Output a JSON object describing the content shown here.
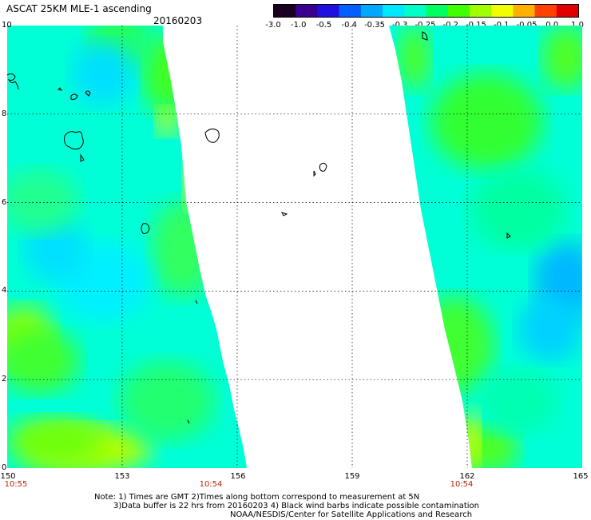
{
  "header": {
    "title": "ASCAT 25KM MLE-1 ascending",
    "date": "20160203"
  },
  "colorbar": {
    "tick_labels": [
      "-3.0",
      "-1.0",
      "-0.5",
      "-0.4",
      "-0.35",
      "-0.3",
      "-0.25",
      "-0.2",
      "-0.15",
      "-0.1",
      "-0.05",
      "0.0",
      "1.0"
    ],
    "colors": [
      "#1a0020",
      "#3a0090",
      "#2010e0",
      "#0060ff",
      "#00a8ff",
      "#00e8ff",
      "#00ffc8",
      "#00ff60",
      "#40ff00",
      "#a0ff00",
      "#f0ff00",
      "#ffb000",
      "#ff4000",
      "#e00000"
    ]
  },
  "map": {
    "y_ticks": [
      "10",
      "8",
      "6",
      "4",
      "2",
      "0"
    ],
    "x_ticks": [
      "150",
      "153",
      "156",
      "159",
      "162",
      "165"
    ],
    "times": [
      "10:55",
      "10:54",
      "10:54"
    ],
    "colors": {
      "field": "#00ffd6",
      "time": "#b5260a"
    }
  },
  "footer": {
    "line1": "Note: 1) Times are GMT 2)Times along bottom correspond to measurement at 5N",
    "line2": "3)Data buffer is 22 hrs from 20160203 4) Black wind barbs indicate possible contamination",
    "line3": "NOAA/NESDIS/Center for Satellite Applications and Research"
  }
}
